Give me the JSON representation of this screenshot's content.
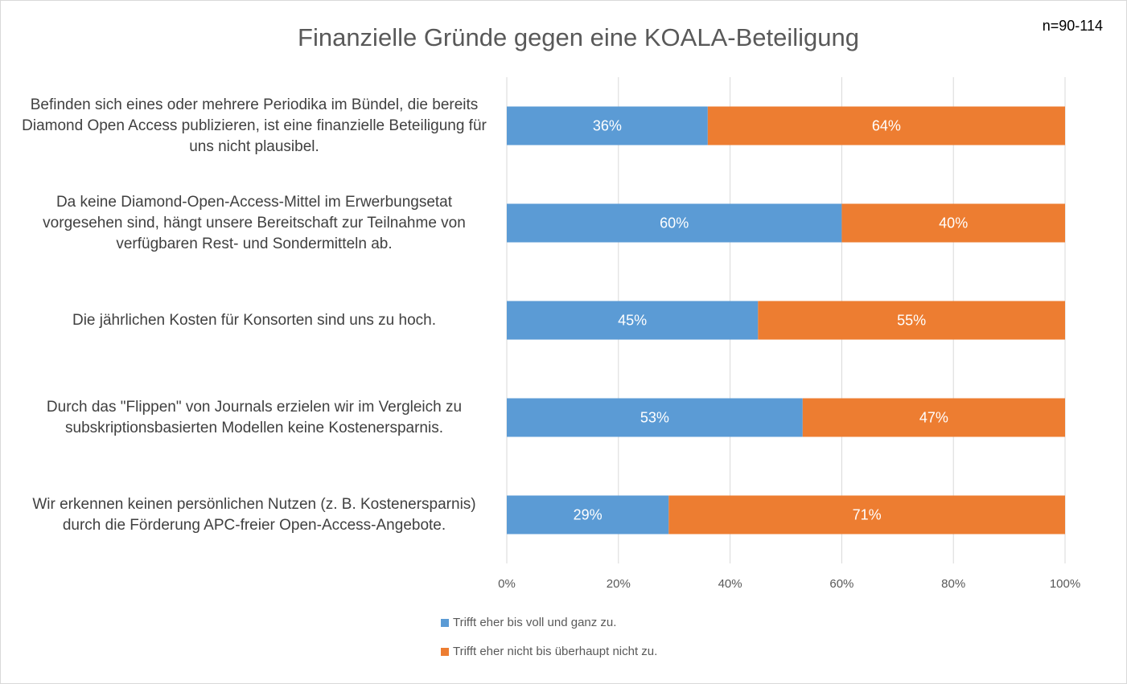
{
  "chart_data": {
    "type": "stacked_barh",
    "title": "Finanzielle Gründe gegen eine KOALA-Beteiligung",
    "annotation": "n=90-114",
    "categories": [
      "Befinden sich eines oder mehrere Periodika im Bündel, die bereits Diamond Open Access publizieren, ist eine finanzielle Beteiligung für uns nicht plausibel.",
      "Da keine Diamond-Open-Access-Mittel im Erwerbungsetat vorgesehen sind, hängt unsere Bereitschaft zur Teilnahme von verfügbaren Rest- und Sondermitteln ab.",
      "Die jährlichen Kosten für Konsorten sind uns zu hoch.",
      "Durch das \"Flippen\" von Journals erzielen wir im Vergleich zu subskriptionsbasierten Modellen keine Kostenersparnis.",
      "Wir erkennen keinen persönlichen Nutzen (z. B. Kostenersparnis) durch die Förderung APC-freier Open-Access-Angebote."
    ],
    "series": [
      {
        "name": "Trifft eher bis voll und ganz zu.",
        "color": "#5b9bd5",
        "values": [
          36,
          60,
          45,
          53,
          29
        ],
        "value_labels": [
          "36%",
          "60%",
          "45%",
          "53%",
          "29%"
        ]
      },
      {
        "name": "Trifft eher nicht bis überhaupt nicht zu.",
        "color": "#ed7d31",
        "values": [
          64,
          40,
          55,
          47,
          71
        ],
        "value_labels": [
          "64%",
          "40%",
          "55%",
          "47%",
          "71%"
        ]
      }
    ],
    "xlim": [
      0,
      100
    ],
    "xticks": [
      {
        "value": 0,
        "label": "0%"
      },
      {
        "value": 20,
        "label": "20%"
      },
      {
        "value": 40,
        "label": "40%"
      },
      {
        "value": 60,
        "label": "60%"
      },
      {
        "value": 80,
        "label": "80%"
      },
      {
        "value": 100,
        "label": "100%"
      }
    ],
    "grid": true,
    "legend": "bottom"
  }
}
